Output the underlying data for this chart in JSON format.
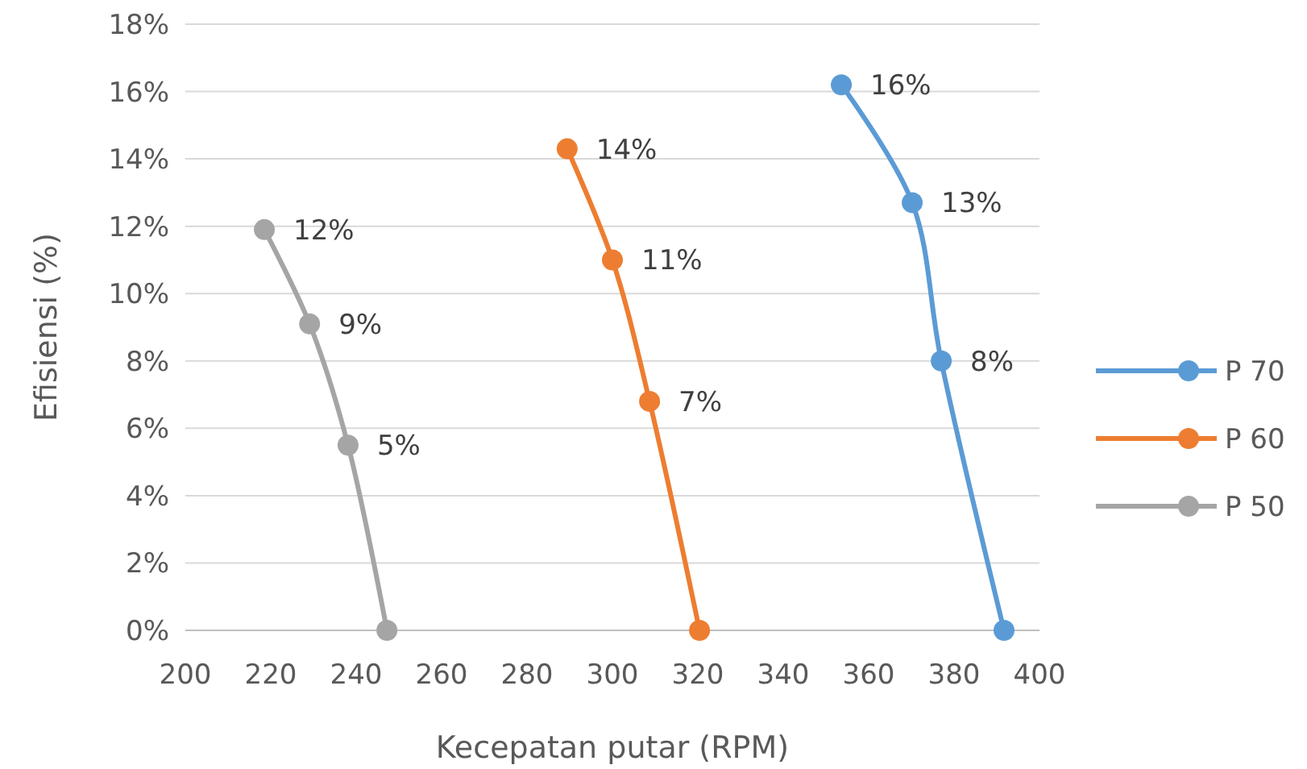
{
  "chart_data": {
    "type": "line",
    "xlabel": "Kecepatan putar (RPM)",
    "ylabel": "Efisiensi (%)",
    "xlim": [
      200,
      400
    ],
    "xticks": [
      200,
      220,
      240,
      260,
      280,
      300,
      320,
      340,
      360,
      380,
      400
    ],
    "ylim": [
      0,
      18
    ],
    "yticks": [
      {
        "value": 0,
        "label": "0%"
      },
      {
        "value": 2,
        "label": "2%"
      },
      {
        "value": 4,
        "label": "4%"
      },
      {
        "value": 6,
        "label": "6%"
      },
      {
        "value": 8,
        "label": "8%"
      },
      {
        "value": 10,
        "label": "10%"
      },
      {
        "value": 12,
        "label": "12%"
      },
      {
        "value": 14,
        "label": "14%"
      },
      {
        "value": 16,
        "label": "16%"
      },
      {
        "value": 18,
        "label": "18%"
      }
    ],
    "grid": "y",
    "legend": "right",
    "marker": "circle",
    "line_style": "solid",
    "series": [
      {
        "name": "P 70",
        "color": "#5b9bd5",
        "x": [
          353.6,
          370.2,
          377,
          391.7
        ],
        "values": [
          16.2,
          12.7,
          8,
          0
        ],
        "value_labels": [
          "16%",
          "13%",
          "8%",
          null
        ]
      },
      {
        "name": "P 60",
        "color": "#ed7d31",
        "x": [
          289.4,
          300,
          308.7,
          320.4
        ],
        "values": [
          14.3,
          11,
          6.8,
          0
        ],
        "value_labels": [
          "14%",
          "11%",
          "7%",
          null
        ]
      },
      {
        "name": "P 50",
        "color": "#a5a5a5",
        "x": [
          218.5,
          229.1,
          238.1,
          247.2
        ],
        "values": [
          11.9,
          9.1,
          5.5,
          0
        ],
        "value_labels": [
          "12%",
          "9%",
          "5%",
          null
        ]
      }
    ]
  }
}
